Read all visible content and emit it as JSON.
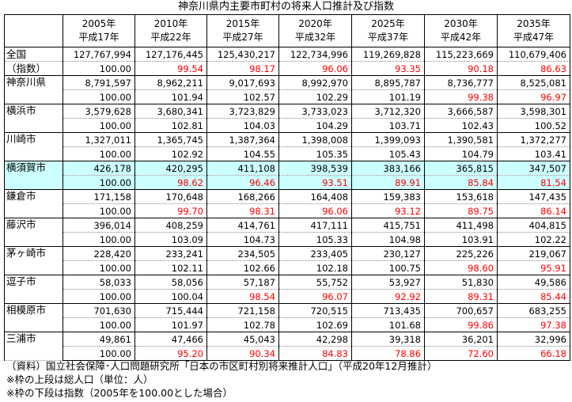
{
  "title": "神奈川県内主要市町村の将来人口推計及び指数",
  "colors": {
    "highlight": "#ccffff",
    "below_base": "#ff0000"
  },
  "columns": [
    {
      "year": "2005年",
      "era": "平成17年"
    },
    {
      "year": "2010年",
      "era": "平成22年"
    },
    {
      "year": "2015年",
      "era": "平成27年"
    },
    {
      "year": "2020年",
      "era": "平成32年"
    },
    {
      "year": "2025年",
      "era": "平成37年"
    },
    {
      "year": "2030年",
      "era": "平成42年"
    },
    {
      "year": "2035年",
      "era": "平成47年"
    }
  ],
  "rows": [
    {
      "name": "全国",
      "name2": "（指数）",
      "highlight": false,
      "pop": [
        "127,767,994",
        "127,176,445",
        "125,430,217",
        "122,734,996",
        "119,269,828",
        "115,223,669",
        "110,679,406"
      ],
      "idx": [
        "100.00",
        "99.54",
        "98.17",
        "96.06",
        "93.35",
        "90.18",
        "86.63"
      ]
    },
    {
      "name": "神奈川県",
      "highlight": false,
      "pop": [
        "8,791,597",
        "8,962,211",
        "9,017,693",
        "8,992,970",
        "8,895,787",
        "8,736,777",
        "8,525,081"
      ],
      "idx": [
        "100.00",
        "101.94",
        "102.57",
        "102.29",
        "101.19",
        "99.38",
        "96.97"
      ]
    },
    {
      "name": "横浜市",
      "highlight": false,
      "pop": [
        "3,579,628",
        "3,680,341",
        "3,723,829",
        "3,733,023",
        "3,712,320",
        "3,666,587",
        "3,598,301"
      ],
      "idx": [
        "100.00",
        "102.81",
        "104.03",
        "104.29",
        "103.71",
        "102.43",
        "100.52"
      ]
    },
    {
      "name": "川崎市",
      "highlight": false,
      "pop": [
        "1,327,011",
        "1,365,745",
        "1,387,364",
        "1,398,008",
        "1,399,093",
        "1,390,581",
        "1,372,277"
      ],
      "idx": [
        "100.00",
        "102.92",
        "104.55",
        "105.35",
        "105.43",
        "104.79",
        "103.41"
      ]
    },
    {
      "name": "横須賀市",
      "highlight": true,
      "pop": [
        "426,178",
        "420,295",
        "411,108",
        "398,539",
        "383,166",
        "365,815",
        "347,507"
      ],
      "idx": [
        "100.00",
        "98.62",
        "96.46",
        "93.51",
        "89.91",
        "85.84",
        "81.54"
      ]
    },
    {
      "name": "鎌倉市",
      "highlight": false,
      "pop": [
        "171,158",
        "170,648",
        "168,266",
        "164,408",
        "159,383",
        "153,618",
        "147,435"
      ],
      "idx": [
        "100.00",
        "99.70",
        "98.31",
        "96.06",
        "93.12",
        "89.75",
        "86.14"
      ]
    },
    {
      "name": "藤沢市",
      "highlight": false,
      "pop": [
        "396,014",
        "408,259",
        "414,761",
        "417,111",
        "415,751",
        "411,498",
        "404,815"
      ],
      "idx": [
        "100.00",
        "103.09",
        "104.73",
        "105.33",
        "104.98",
        "103.91",
        "102.22"
      ]
    },
    {
      "name": "茅ヶ崎市",
      "highlight": false,
      "pop": [
        "228,420",
        "233,241",
        "234,505",
        "233,405",
        "230,127",
        "225,226",
        "219,067"
      ],
      "idx": [
        "100.00",
        "102.11",
        "102.66",
        "102.18",
        "100.75",
        "98.60",
        "95.91"
      ]
    },
    {
      "name": "逗子市",
      "highlight": false,
      "pop": [
        "58,033",
        "58,056",
        "57,187",
        "55,752",
        "53,927",
        "51,830",
        "49,586"
      ],
      "idx": [
        "100.00",
        "100.04",
        "98.54",
        "96.07",
        "92.92",
        "89.31",
        "85.44"
      ]
    },
    {
      "name": "相模原市",
      "highlight": false,
      "pop": [
        "701,630",
        "715,444",
        "721,158",
        "720,515",
        "713,435",
        "700,657",
        "683,255"
      ],
      "idx": [
        "100.00",
        "101.97",
        "102.78",
        "102.69",
        "101.68",
        "99.86",
        "97.38"
      ]
    },
    {
      "name": "三浦市",
      "highlight": false,
      "pop": [
        "49,861",
        "47,466",
        "45,043",
        "42,298",
        "39,318",
        "36,201",
        "32,996"
      ],
      "idx": [
        "100.00",
        "95.20",
        "90.34",
        "84.83",
        "78.86",
        "72.60",
        "66.18"
      ]
    }
  ],
  "notes": [
    "（資料）国立社会保障･人口問題研究所「日本の市区町村別将来推計人口」（平成20年12月推計）",
    "※枠の上段は総人口（単位：人）",
    "※枠の下段は指数（2005年を100.00とした場合）"
  ]
}
